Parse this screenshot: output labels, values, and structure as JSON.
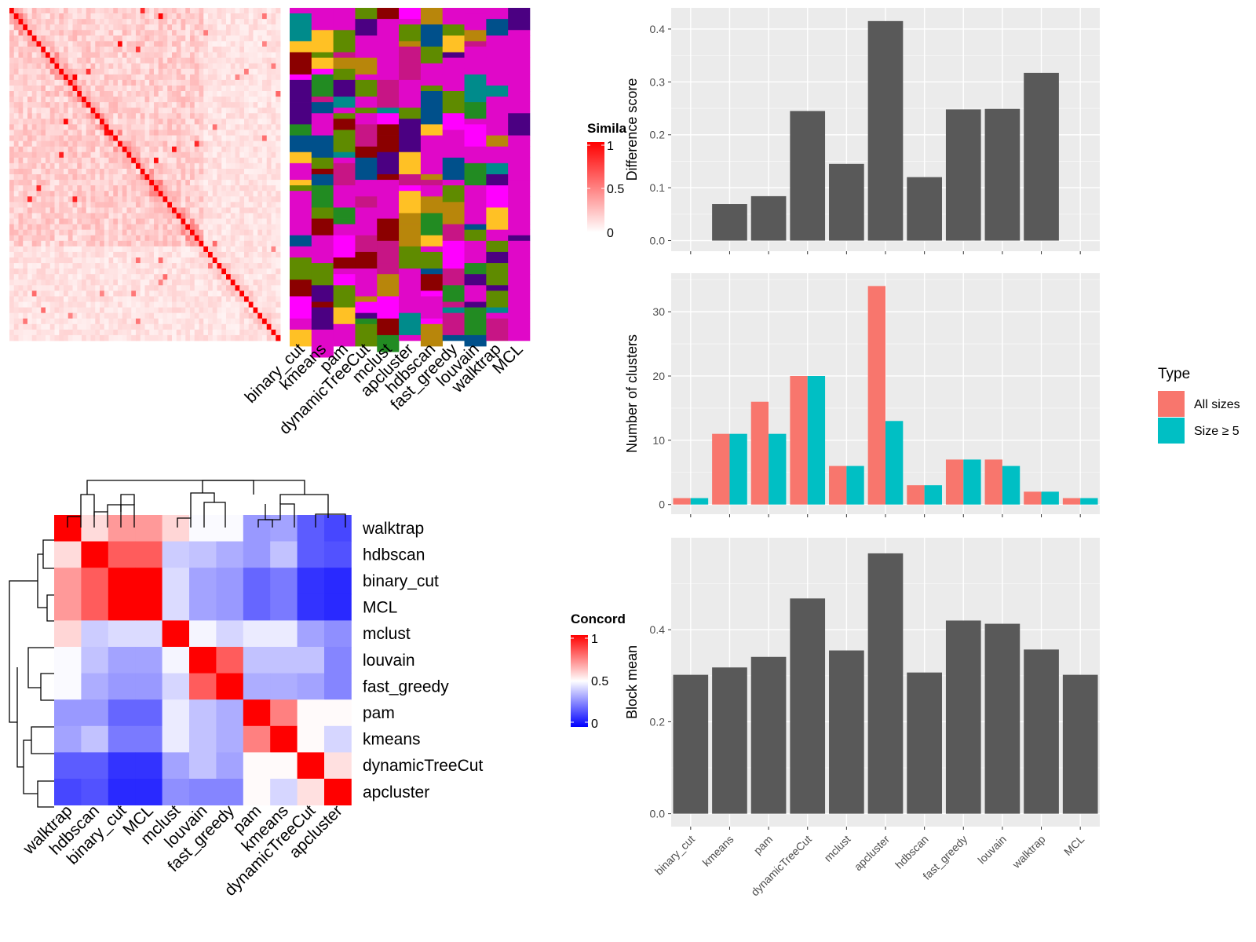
{
  "heatmap1": {
    "legend_title": "Simila",
    "legend_ticks": [
      "1",
      "0.5",
      "0"
    ],
    "sim_colors": {
      "high": "#ff0000",
      "low": "#ffffff"
    },
    "methods": [
      "binary_cut",
      "kmeans",
      "pam",
      "dynamicTreeCut",
      "mclust",
      "apcluster",
      "hdbscan",
      "fast_greedy",
      "louvain",
      "walktrap",
      "MCL"
    ],
    "palette": [
      "#008b8b",
      "#4b0082",
      "#b8860b",
      "#8b0000",
      "#ff00ff",
      "#00508b",
      "#5f8b00",
      "#c71585",
      "#ffc125",
      "#228b22"
    ]
  },
  "heatmap2": {
    "legend_title": "Concord",
    "legend_ticks": [
      "1",
      "0.5",
      "0"
    ],
    "colors": {
      "high": "#ff0000",
      "mid": "#ffffff",
      "low": "#0000ff"
    },
    "row_labels": [
      "walktrap",
      "hdbscan",
      "binary_cut",
      "MCL",
      "mclust",
      "louvain",
      "fast_greedy",
      "pam",
      "kmeans",
      "dynamicTreeCut",
      "apcluster"
    ],
    "col_labels": [
      "walktrap",
      "hdbscan",
      "binary_cut",
      "MCL",
      "mclust",
      "louvain",
      "fast_greedy",
      "pam",
      "kmeans",
      "dynamicTreeCut",
      "apcluster"
    ],
    "matrix": [
      [
        1.0,
        0.57,
        0.7,
        0.7,
        0.58,
        0.49,
        0.49,
        0.3,
        0.32,
        0.18,
        0.14
      ],
      [
        0.57,
        1.0,
        0.82,
        0.82,
        0.4,
        0.38,
        0.34,
        0.3,
        0.38,
        0.18,
        0.16
      ],
      [
        0.7,
        0.82,
        1.0,
        1.0,
        0.43,
        0.32,
        0.3,
        0.2,
        0.24,
        0.1,
        0.08
      ],
      [
        0.7,
        0.82,
        1.0,
        1.0,
        0.43,
        0.32,
        0.3,
        0.2,
        0.24,
        0.1,
        0.08
      ],
      [
        0.58,
        0.4,
        0.43,
        0.43,
        1.0,
        0.48,
        0.42,
        0.46,
        0.46,
        0.32,
        0.28
      ],
      [
        0.49,
        0.38,
        0.32,
        0.32,
        0.48,
        1.0,
        0.82,
        0.38,
        0.38,
        0.38,
        0.26
      ],
      [
        0.49,
        0.34,
        0.3,
        0.3,
        0.42,
        0.82,
        1.0,
        0.34,
        0.34,
        0.32,
        0.26
      ],
      [
        0.3,
        0.3,
        0.2,
        0.2,
        0.46,
        0.38,
        0.34,
        1.0,
        0.75,
        0.51,
        0.51
      ],
      [
        0.32,
        0.38,
        0.24,
        0.24,
        0.46,
        0.38,
        0.34,
        0.75,
        1.0,
        0.51,
        0.42
      ],
      [
        0.18,
        0.18,
        0.1,
        0.1,
        0.32,
        0.38,
        0.32,
        0.51,
        0.51,
        1.0,
        0.56
      ],
      [
        0.14,
        0.16,
        0.08,
        0.08,
        0.28,
        0.26,
        0.26,
        0.51,
        0.42,
        0.56,
        1.0
      ]
    ]
  },
  "chart_data": [
    {
      "type": "bar",
      "categories": [
        "binary_cut",
        "kmeans",
        "pam",
        "dynamicTreeCut",
        "mclust",
        "apcluster",
        "hdbscan",
        "fast_greedy",
        "louvain",
        "walktrap",
        "MCL"
      ],
      "values": [
        0,
        0.069,
        0.084,
        0.245,
        0.145,
        0.415,
        0.12,
        0.248,
        0.249,
        0.317,
        0
      ],
      "ylabel": "Difference score",
      "xlabel": "",
      "ylim": [
        -0.02,
        0.44
      ],
      "yticks": [
        "0.0",
        "0.1",
        "0.2",
        "0.3",
        "0.4"
      ],
      "bar_color": "#595959",
      "grid": true
    },
    {
      "type": "bar",
      "categories": [
        "binary_cut",
        "kmeans",
        "pam",
        "dynamicTreeCut",
        "mclust",
        "apcluster",
        "hdbscan",
        "fast_greedy",
        "louvain",
        "walktrap",
        "MCL"
      ],
      "series": [
        {
          "name": "All sizes",
          "values": [
            1,
            11,
            16,
            20,
            6,
            34,
            3,
            7,
            7,
            2,
            1
          ],
          "color": "#f8766d"
        },
        {
          "name": "Size ≥ 5",
          "values": [
            1,
            11,
            11,
            20,
            6,
            13,
            3,
            7,
            6,
            2,
            1
          ],
          "color": "#00bfc4"
        }
      ],
      "ylabel": "Number of clusters",
      "xlabel": "",
      "ylim": [
        -1.5,
        36
      ],
      "yticks": [
        "0",
        "10",
        "20",
        "30"
      ],
      "legend_title": "Type",
      "legend_position": "right",
      "grid": true
    },
    {
      "type": "bar",
      "categories": [
        "binary_cut",
        "kmeans",
        "pam",
        "dynamicTreeCut",
        "mclust",
        "apcluster",
        "hdbscan",
        "fast_greedy",
        "louvain",
        "walktrap",
        "MCL"
      ],
      "values": [
        0.302,
        0.318,
        0.341,
        0.468,
        0.355,
        0.566,
        0.307,
        0.42,
        0.413,
        0.357,
        0.302
      ],
      "ylabel": "Block mean",
      "xlabel": "",
      "ylim": [
        -0.028,
        0.6
      ],
      "yticks": [
        "0.0",
        "0.2",
        "0.4"
      ],
      "bar_color": "#595959",
      "grid": true
    }
  ]
}
